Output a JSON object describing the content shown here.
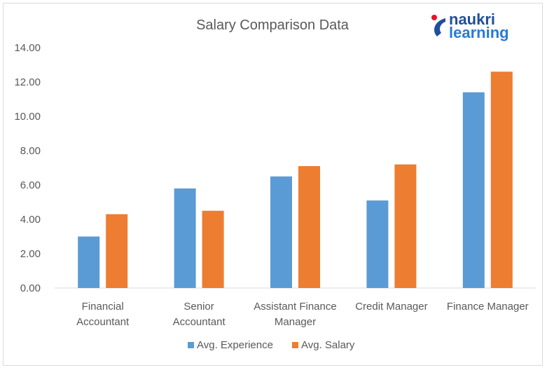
{
  "logo": {
    "line1": "naukri",
    "line2": "learning",
    "mark_color": "#1f4e9e",
    "dot_color": "#e8112d"
  },
  "chart_data": {
    "type": "bar",
    "title": "Salary Comparison Data",
    "categories": [
      [
        "Financial",
        "Accountant"
      ],
      [
        "Senior",
        "Accountant"
      ],
      [
        "Assistant Finance",
        "Manager"
      ],
      [
        "Credit Manager"
      ],
      [
        "Finance Manager"
      ]
    ],
    "series": [
      {
        "name": "Avg. Experience",
        "color": "#5b9bd5",
        "values": [
          3.0,
          5.8,
          6.5,
          5.1,
          11.4
        ]
      },
      {
        "name": "Avg. Salary",
        "color": "#ed7d31",
        "values": [
          4.3,
          4.5,
          7.1,
          7.2,
          12.6
        ]
      }
    ],
    "yticks": [
      "0.00",
      "2.00",
      "4.00",
      "6.00",
      "8.00",
      "10.00",
      "12.00",
      "14.00"
    ],
    "ylim": [
      0,
      14
    ],
    "grid": false,
    "legend_position": "bottom"
  }
}
